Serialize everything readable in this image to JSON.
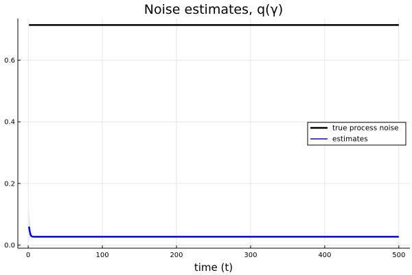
{
  "chart_data": {
    "type": "line",
    "title": "Noise estimates, q(γ)",
    "xlabel": "time (t)",
    "ylabel": "",
    "xlim": [
      -14,
      515
    ],
    "ylim": [
      -0.01,
      0.735
    ],
    "xticks": [
      0,
      100,
      200,
      300,
      400,
      500
    ],
    "xtick_labels": [
      "0",
      "100",
      "200",
      "300",
      "400",
      "500"
    ],
    "yticks": [
      0.0,
      0.2,
      0.4,
      0.6
    ],
    "ytick_labels": [
      "0.0",
      "0.2",
      "0.4",
      "0.6"
    ],
    "grid": true,
    "legend_position": "right",
    "series": [
      {
        "name": "true process noise",
        "color": "#000000",
        "x": [
          1,
          500
        ],
        "y": [
          0.714,
          0.714
        ]
      },
      {
        "name": "estimates",
        "color": "#0000ff",
        "x": [
          1,
          2,
          3,
          4,
          5,
          6,
          8,
          10,
          20,
          100,
          200,
          300,
          400,
          500
        ],
        "y": [
          0.06,
          0.045,
          0.035,
          0.03,
          0.028,
          0.0275,
          0.0272,
          0.0272,
          0.0272,
          0.0272,
          0.0272,
          0.0272,
          0.0272,
          0.0272
        ],
        "band_upper": [
          0.12,
          0.08,
          0.05,
          0.035,
          0.03,
          0.029,
          0.028,
          0.028,
          0.028,
          0.028,
          0.028,
          0.028,
          0.028,
          0.028
        ],
        "band_lower": [
          0.02,
          0.025,
          0.027,
          0.027,
          0.027,
          0.027,
          0.027,
          0.027,
          0.027,
          0.027,
          0.027,
          0.027,
          0.027,
          0.027
        ]
      }
    ]
  }
}
